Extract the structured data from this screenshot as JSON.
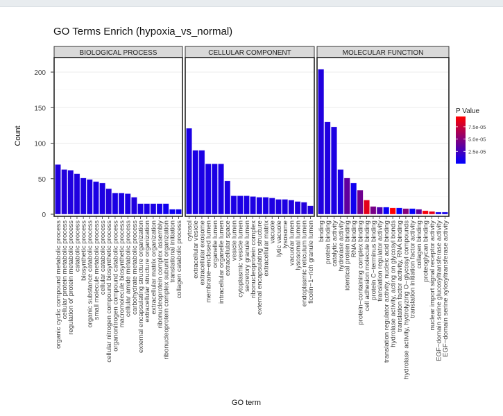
{
  "chart_data": {
    "type": "bar",
    "title": "GO Terms Enrich (hypoxia_vs_normal)",
    "xlabel": "GO term",
    "ylabel": "Count",
    "ylim": [
      0,
      220
    ],
    "yticks": [
      0,
      50,
      100,
      150,
      200
    ],
    "grid": true,
    "legend": {
      "title": "P Value",
      "placement": "right",
      "ticks": [
        "2.5e-05",
        "5.0e-05",
        "7.5e-05"
      ],
      "tick_values": [
        2.5e-05,
        5e-05,
        7.5e-05
      ],
      "range": [
        0,
        9.6e-05
      ],
      "low_color": "#0000ff",
      "high_color": "#ff0000"
    },
    "strip_color": "#d9d9d9",
    "facets": [
      {
        "name": "BIOLOGICAL PROCESS",
        "categories": [
          "organic cyclic compound metabolic process",
          "cellular protein metabolic process",
          "regulation of protein metabolic process",
          "catabolic process",
          "biosynthetic process",
          "organic substance catabolic process",
          "small molecule metabolic process",
          "cellular catabolic process",
          "cellular nitrogen compound biosynthetic process",
          "organonitrogen compound catabolic process",
          "macromolecule biosynthetic process",
          "cellular amide metabolic process",
          "carbohydrate metabolic process",
          "external encapsulating structure organization",
          "extracellular structure organization",
          "extracellular matrix organization",
          "ribonucleoprotein complex assembly",
          "ribonucleoprotein complex subunit organization",
          "translational initiation",
          "collagen catabolic process"
        ],
        "values": [
          70,
          63,
          62,
          57,
          51,
          49,
          46,
          44,
          36,
          30,
          30,
          29,
          24,
          15,
          15,
          15,
          15,
          15,
          7,
          7
        ],
        "pvalues": [
          1.2e-05,
          1.3e-05,
          1.2e-05,
          1.2e-05,
          1.1e-05,
          1.1e-05,
          1e-05,
          1.1e-05,
          1.3e-05,
          1e-05,
          1e-05,
          1e-05,
          1.2e-05,
          1e-05,
          1e-05,
          1e-05,
          8e-06,
          6e-06,
          5e-06,
          5e-06
        ]
      },
      {
        "name": "CELLULAR COMPONENT",
        "categories": [
          "cytosol",
          "extracellular vesicle",
          "extracellular exosome",
          "membrane−enclosed lumen",
          "organelle lumen",
          "intracellular organelle lumen",
          "extracellular space",
          "vesicle lumen",
          "cytoplasmic vesicle lumen",
          "secretory granule lumen",
          "ribonucleoprotein complex",
          "external encapsulating structure",
          "extracellular matrix",
          "vacuole",
          "lytic vacuole",
          "lysosome",
          "vacuolar lumen",
          "lysosomal lumen",
          "endoplasmic reticulum lumen",
          "ficolin−1−rich granule lumen"
        ],
        "values": [
          121,
          90,
          90,
          71,
          71,
          71,
          47,
          26,
          26,
          26,
          25,
          24,
          24,
          23,
          21,
          21,
          20,
          18,
          17,
          12
        ],
        "pvalues": [
          1e-05,
          1e-05,
          1e-05,
          1e-05,
          1e-05,
          1e-05,
          1.1e-05,
          1e-05,
          1e-05,
          1e-05,
          1.1e-05,
          1e-05,
          1e-05,
          1.1e-05,
          1.1e-05,
          1.1e-05,
          1.2e-05,
          1.2e-05,
          1.3e-05,
          1.3e-05
        ]
      },
      {
        "name": "MOLECULAR FUNCTION",
        "categories": [
          "binding",
          "protein binding",
          "catalytic activity",
          "hydrolase activity",
          "identical protein binding",
          "RNA binding",
          "protein−containing complex binding",
          "cell adhesion molecule binding",
          "protein C−terminus binding",
          "translation regulator activity",
          "translation regulator activity, nucleic acid binding",
          "hydrolase activity, acting on glycosyl bonds",
          "translation factor activity, RNA binding",
          "hydrolase activity, hydrolyzing O−glycosyl compounds",
          "translation initiation factor activity",
          "collagen binding",
          "proteoglycan binding",
          "nuclear import signal receptor activity",
          "EGF−domain serine glucosyltransferase activity",
          "EGF−domain serine xylosyltransferase activity"
        ],
        "values": [
          204,
          130,
          123,
          63,
          51,
          44,
          34,
          20,
          11,
          10,
          10,
          9,
          9,
          8,
          8,
          7,
          5,
          4,
          3,
          3
        ],
        "pvalues": [
          1.2e-05,
          1.2e-05,
          1.1e-05,
          1e-05,
          3.6e-05,
          6e-06,
          4.2e-05,
          8.6e-05,
          4.5e-05,
          3e-05,
          3e-06,
          9.6e-05,
          3e-06,
          5e-05,
          2e-06,
          3.6e-05,
          9.2e-05,
          8.6e-05,
          8e-06,
          8e-06
        ]
      }
    ]
  }
}
